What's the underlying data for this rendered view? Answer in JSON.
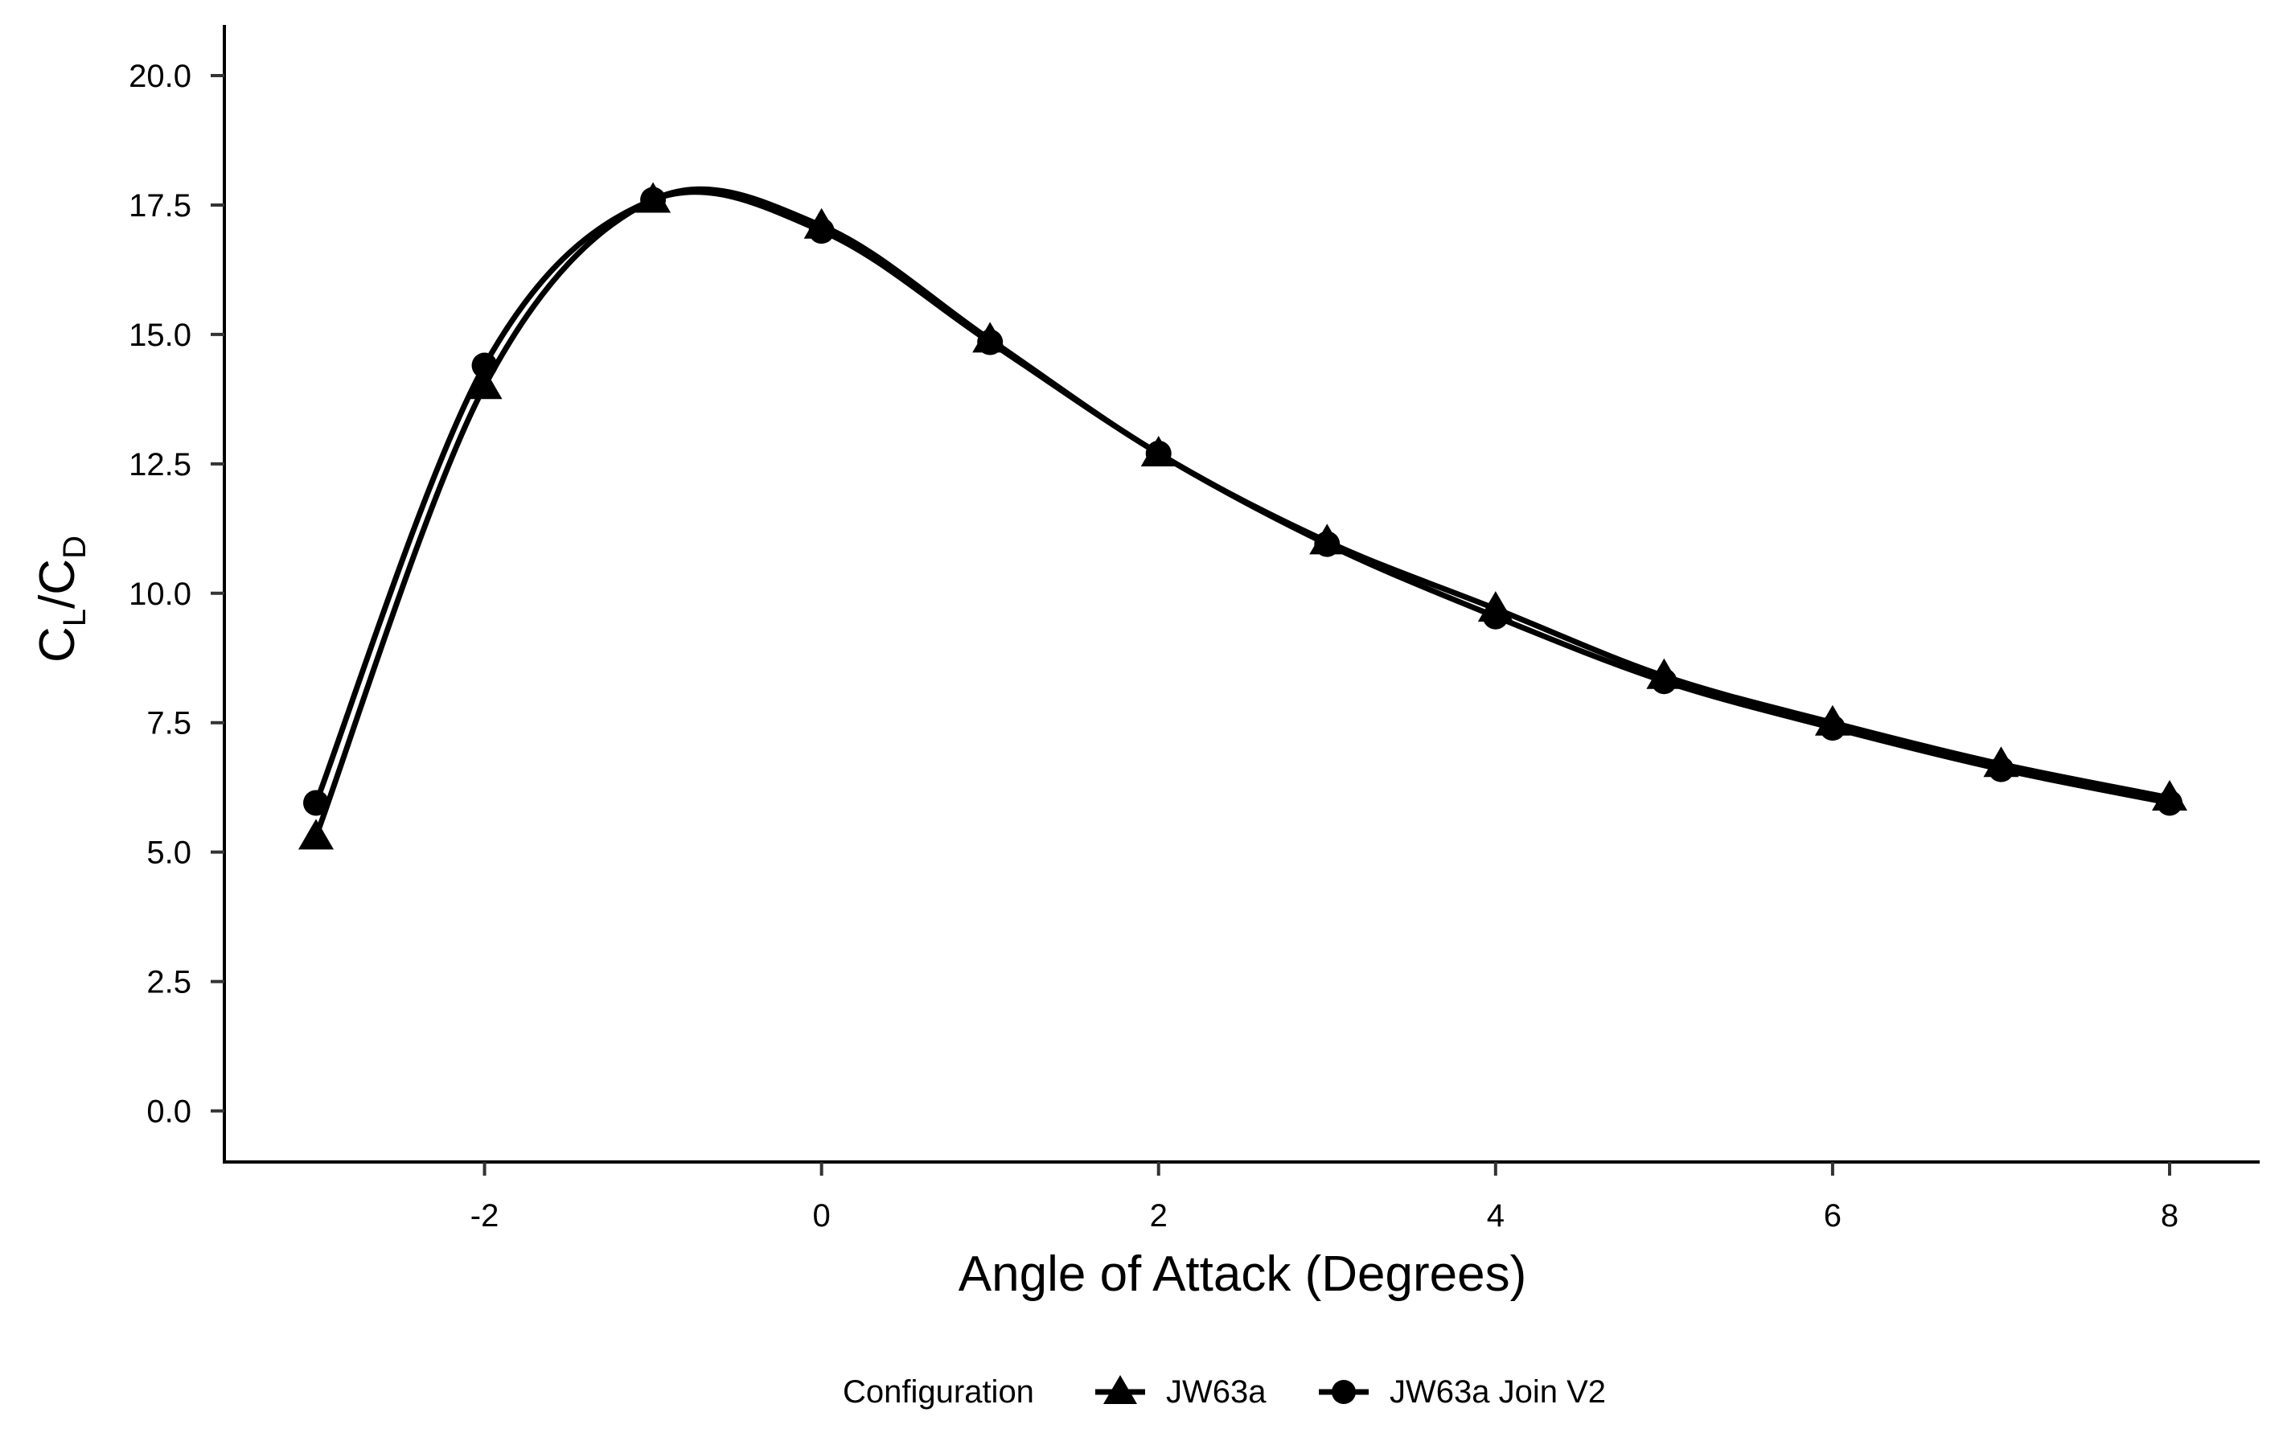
{
  "chart_data": {
    "type": "line",
    "title": "",
    "xlabel": "Angle of Attack (Degrees)",
    "ylabel": {
      "main": "C",
      "sub1": "L",
      "slash": "/",
      "main2": "C",
      "sub2": "D"
    },
    "xlim": [
      -3.5,
      8.5
    ],
    "ylim": [
      -1,
      21
    ],
    "xticks": [
      -2,
      0,
      2,
      4,
      6,
      8
    ],
    "xtick_labels": [
      "-2",
      "0",
      "2",
      "4",
      "6",
      "8"
    ],
    "yticks": [
      0,
      2.5,
      5,
      7.5,
      10,
      12.5,
      15,
      17.5,
      20
    ],
    "ytick_labels": [
      "0.0",
      "2.5",
      "5.0",
      "7.5",
      "10.0",
      "12.5",
      "15.0",
      "17.5",
      "20.0"
    ],
    "grid": false,
    "legend": {
      "title": "Configuration",
      "placement": "bottom"
    },
    "x": [
      -3,
      -2,
      -1,
      0,
      1,
      2,
      3,
      4,
      5,
      6,
      7,
      8
    ],
    "series": [
      {
        "name": "JW63a",
        "marker": "triangle",
        "values": [
          5.3,
          14.0,
          17.6,
          17.1,
          14.9,
          12.7,
          11.0,
          9.7,
          8.4,
          7.5,
          6.7,
          6.05
        ]
      },
      {
        "name": "JW63a Join V2",
        "marker": "circle",
        "values": [
          5.95,
          14.4,
          17.6,
          17.0,
          14.85,
          12.7,
          10.95,
          9.55,
          8.3,
          7.4,
          6.6,
          5.95
        ]
      }
    ],
    "colors": {
      "line": "#000000",
      "axis": "#000000"
    }
  }
}
